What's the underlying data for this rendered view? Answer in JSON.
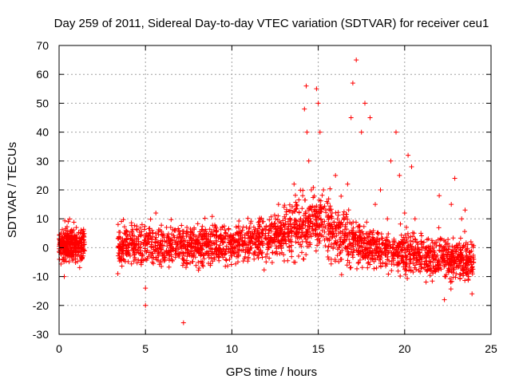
{
  "chart_data": {
    "type": "scatter",
    "title": "Day 259 of 2011, Sidereal Day-to-day VTEC variation (SDTVAR) for receiver ceu1",
    "xlabel": "GPS time / hours",
    "ylabel": "SDTVAR / TECUs",
    "xlim": [
      0,
      25
    ],
    "ylim": [
      -30,
      70
    ],
    "xticks": [
      0,
      5,
      10,
      15,
      20,
      25
    ],
    "yticks": [
      -30,
      -20,
      -10,
      0,
      10,
      20,
      30,
      40,
      50,
      60,
      70
    ],
    "grid": true,
    "marker": "+",
    "color": "#ff0000",
    "series": [
      {
        "name": "SDTVAR",
        "x": [
          0.05,
          0.2,
          0.35,
          0.5,
          0.7,
          0.9,
          1.1,
          1.3,
          0.3,
          0.4,
          1.2,
          3.4,
          3.6,
          3.8,
          4.0,
          4.2,
          4.4,
          4.6,
          4.8,
          5.0,
          5.0,
          5.2,
          5.4,
          5.6,
          5.8,
          6.0,
          6.5,
          7.0,
          7.2,
          7.5,
          8.0,
          8.5,
          9.0,
          9.5,
          10.0,
          10.5,
          11.0,
          11.5,
          12.0,
          12.5,
          12.7,
          13.0,
          13.3,
          13.6,
          13.9,
          14.1,
          14.2,
          14.3,
          14.35,
          14.45,
          14.6,
          14.8,
          14.9,
          15.0,
          15.1,
          15.3,
          15.5,
          15.8,
          16.0,
          16.2,
          16.5,
          16.7,
          16.9,
          17.0,
          17.2,
          17.5,
          17.7,
          18.0,
          18.3,
          18.6,
          18.9,
          19.0,
          19.2,
          19.5,
          19.7,
          20.0,
          20.2,
          20.4,
          20.6,
          20.8,
          21.0,
          21.5,
          22.0,
          22.3,
          22.5,
          22.7,
          22.9,
          23.0,
          23.3,
          23.5,
          23.7,
          23.9,
          24.0
        ],
        "y": [
          1,
          3,
          -2,
          4,
          -3,
          2,
          0,
          -1,
          -10,
          6,
          -3,
          -9,
          2,
          5,
          0,
          3,
          -4,
          1,
          8,
          -20,
          -14,
          3,
          -2,
          12,
          0,
          4,
          -3,
          2,
          -26,
          1,
          0,
          3,
          -4,
          2,
          1,
          4,
          -2,
          6,
          3,
          5,
          15,
          8,
          4,
          22,
          9,
          18,
          48,
          56,
          40,
          30,
          20,
          14,
          55,
          50,
          40,
          20,
          16,
          12,
          25,
          8,
          10,
          22,
          45,
          57,
          65,
          40,
          50,
          45,
          15,
          20,
          0,
          10,
          30,
          40,
          25,
          12,
          32,
          28,
          10,
          -2,
          0,
          -5,
          18,
          -18,
          -8,
          15,
          24,
          -4,
          10,
          13,
          -10,
          -16,
          -4
        ]
      }
    ]
  }
}
